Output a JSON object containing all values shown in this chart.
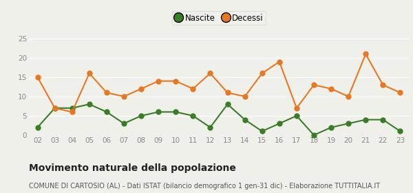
{
  "years": [
    "02",
    "03",
    "04",
    "05",
    "06",
    "07",
    "08",
    "09",
    "10",
    "11",
    "12",
    "13",
    "14",
    "15",
    "16",
    "17",
    "18",
    "19",
    "20",
    "21",
    "22",
    "23"
  ],
  "nascite": [
    2,
    7,
    7,
    8,
    6,
    3,
    5,
    6,
    6,
    5,
    2,
    8,
    4,
    1,
    3,
    5,
    0,
    2,
    3,
    4,
    4,
    1
  ],
  "decessi": [
    15,
    7,
    6,
    16,
    11,
    10,
    12,
    14,
    14,
    12,
    16,
    11,
    10,
    16,
    19,
    7,
    13,
    12,
    10,
    21,
    13,
    11
  ],
  "nascite_color": "#3a7d27",
  "decessi_color": "#e87722",
  "background_color": "#f0f0eb",
  "ylim": [
    0,
    25
  ],
  "yticks": [
    0,
    5,
    10,
    15,
    20,
    25
  ],
  "title": "Movimento naturale della popolazione",
  "subtitle": "COMUNE DI CARTOSIO (AL) - Dati ISTAT (bilancio demografico 1 gen-31 dic) - Elaborazione TUTTITALIA.IT",
  "title_fontsize": 10,
  "subtitle_fontsize": 7,
  "legend_nascite": "Nascite",
  "legend_decessi": "Decessi",
  "marker_size": 5,
  "line_width": 1.5,
  "tick_label_color": "#888888",
  "grid_color": "#ffffff"
}
